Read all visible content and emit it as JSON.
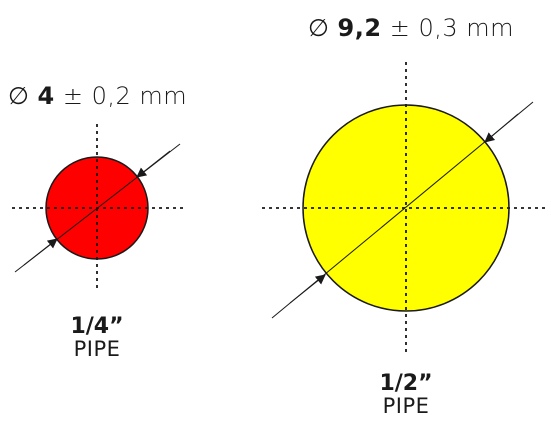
{
  "pipes": [
    {
      "id": "quarter",
      "diameter_symbol": "∅",
      "diameter_value": "4",
      "tolerance": "± 0,2 mm",
      "size_label": "1/4”",
      "type_label": "PIPE",
      "fill_color": "#ff0000"
    },
    {
      "id": "half",
      "diameter_symbol": "∅",
      "diameter_value": "9,2",
      "tolerance": "± 0,3 mm",
      "size_label": "1/2”",
      "type_label": "PIPE",
      "fill_color": "#ffff00"
    }
  ],
  "colors": {
    "stroke": "#1a1a1a"
  }
}
